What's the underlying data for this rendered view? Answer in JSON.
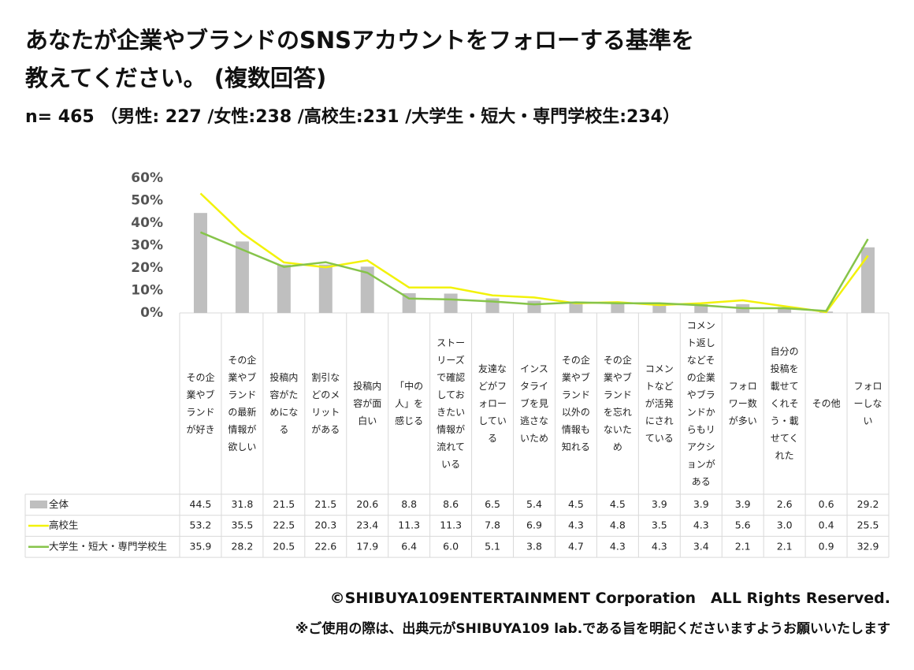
{
  "chart_data": {
    "type": "bar",
    "title": [
      "あなたが企業やブランドのSNSアカウントをフォローする基準を",
      "教えてください。 (複数回答)"
    ],
    "subtitle": "n= 465 （男性: 227 /女性:238 /高校生:231 /大学生・短大・専門学校生:234）",
    "categories": [
      "その企業やブランドが好き",
      "その企業やブランドの最新情報が欲しい",
      "投稿内容がためになる",
      "割引などのメリットがある",
      "投稿内容が面白い",
      "「中の人」を感じる",
      "ストーリーズで確認しておきたい情報が流れている",
      "友達などがフォローしている",
      "インスタライブを見逃さないため",
      "その企業やブランド以外の情報も知れる",
      "その企業やブランドを忘れないため",
      "コメントなどが活発にされている",
      "コメント返しなどその企業やブランドからもリアクションがある",
      "フォロワー数が多い",
      "自分の投稿を載せてくれそう・載せてくれた",
      "その他",
      "フォローしない"
    ],
    "series": [
      {
        "name": "全体",
        "type": "bar",
        "color": "#bfbfbf",
        "values": [
          44.5,
          31.8,
          21.5,
          21.5,
          20.6,
          8.8,
          8.6,
          6.5,
          5.4,
          4.5,
          4.5,
          3.9,
          3.9,
          3.9,
          2.6,
          0.6,
          29.2
        ],
        "value_labels": [
          "44.5",
          "31.8",
          "21.5",
          "21.5",
          "20.6",
          "8.8",
          "8.6",
          "6.5",
          "5.4",
          "4.5",
          "4.5",
          "3.9",
          "3.9",
          "3.9",
          "2.6",
          "0.6",
          "29.2"
        ]
      },
      {
        "name": "高校生",
        "type": "line",
        "color": "#f2f20a",
        "values": [
          53.2,
          35.5,
          22.5,
          20.3,
          23.4,
          11.3,
          11.3,
          7.8,
          6.9,
          4.3,
          4.8,
          3.5,
          4.3,
          5.6,
          3.0,
          0.4,
          25.5
        ],
        "value_labels": [
          "53.2",
          "35.5",
          "22.5",
          "20.3",
          "23.4",
          "11.3",
          "11.3",
          "7.8",
          "6.9",
          "4.3",
          "4.8",
          "3.5",
          "4.3",
          "5.6",
          "3.0",
          "0.4",
          "25.5"
        ]
      },
      {
        "name": "大学生・短大・専門学校生",
        "type": "line",
        "color": "#86c44a",
        "values": [
          35.9,
          28.2,
          20.5,
          22.6,
          17.9,
          6.4,
          6.0,
          5.1,
          3.8,
          4.7,
          4.3,
          4.3,
          3.4,
          2.1,
          2.1,
          0.9,
          32.9
        ],
        "value_labels": [
          "35.9",
          "28.2",
          "20.5",
          "22.6",
          "17.9",
          "6.4",
          "6.0",
          "5.1",
          "3.8",
          "4.7",
          "4.3",
          "4.3",
          "3.4",
          "2.1",
          "2.1",
          "0.9",
          "32.9"
        ]
      }
    ],
    "ylim": [
      0,
      60
    ],
    "yticks": [
      {
        "value": 0,
        "label": "0%"
      },
      {
        "value": 10,
        "label": "10%"
      },
      {
        "value": 20,
        "label": "20%"
      },
      {
        "value": 30,
        "label": "30%"
      },
      {
        "value": 40,
        "label": "40%"
      },
      {
        "value": 50,
        "label": "50%"
      },
      {
        "value": 60,
        "label": "60%"
      }
    ],
    "grid": false,
    "footer": [
      "©SHIBUYA109ENTERTAINMENT Corporation　ALL Rights Reserved.",
      "※ご使用の際は、出典元がSHIBUYA109 lab.である旨を明記くださいますようお願いいたします"
    ]
  }
}
